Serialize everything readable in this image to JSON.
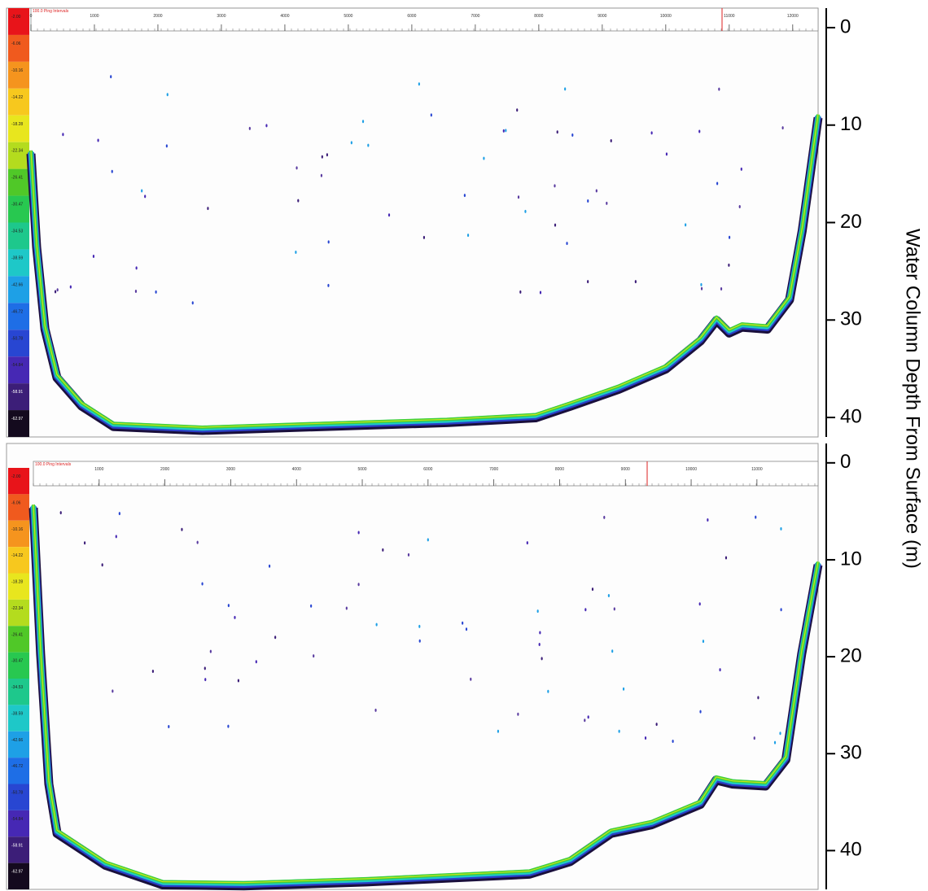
{
  "y_label": "Water Column Depth From Surface (m)",
  "color_scale": {
    "ticks": [
      {
        "value": -2.0,
        "label": "-2.00"
      },
      {
        "value": -6.06,
        "label": "-6.06"
      },
      {
        "value": -10.16,
        "label": "-10.16"
      },
      {
        "value": -14.22,
        "label": "-14.22"
      },
      {
        "value": -18.28,
        "label": "-18.28"
      },
      {
        "value": -22.34,
        "label": "-22.34"
      },
      {
        "value": -26.41,
        "label": "-26.41"
      },
      {
        "value": -30.47,
        "label": "-30.47"
      },
      {
        "value": -34.53,
        "label": "-34.53"
      },
      {
        "value": -38.59,
        "label": "-38.59"
      },
      {
        "value": -42.66,
        "label": "-42.66"
      },
      {
        "value": -46.72,
        "label": "-46.72"
      },
      {
        "value": -50.78,
        "label": "-50.78"
      },
      {
        "value": -54.84,
        "label": "-54.84"
      },
      {
        "value": -58.91,
        "label": "-58.91"
      },
      {
        "value": -62.97,
        "label": "-62.97"
      }
    ],
    "colors": [
      "#e8141a",
      "#f05a1e",
      "#f5941e",
      "#f7c81e",
      "#e8e61e",
      "#b4dc1e",
      "#50c828",
      "#28c850",
      "#1ec88c",
      "#1ec8c8",
      "#1ea0e6",
      "#1e6ee6",
      "#2846d2",
      "#4628b4",
      "#3c1e78",
      "#140a1e"
    ]
  },
  "chart_data": [
    {
      "type": "echogram",
      "x_label": "100.0 Ping Intervals",
      "xlim": [
        0,
        12400
      ],
      "xticks": [
        0,
        1000,
        2000,
        3000,
        4000,
        5000,
        6000,
        7000,
        8000,
        9000,
        10000,
        11000,
        12000
      ],
      "ylim": [
        -2,
        42
      ],
      "yticks": [
        0,
        10,
        20,
        30,
        40
      ],
      "x": [
        0,
        90,
        220,
        410,
        800,
        1300,
        2700,
        4600,
        6550,
        7950,
        8500,
        9250,
        10000,
        10550,
        10800,
        11000,
        11200,
        11600,
        11950,
        12150,
        12400
      ],
      "series": [
        {
          "color": "#3ccf3c",
          "values": [
            12.6,
            22.2,
            30.6,
            35.6,
            38.5,
            40.6,
            41,
            40.6,
            40.2,
            39.7,
            38.5,
            36.8,
            34.7,
            31.8,
            29.7,
            31,
            30.4,
            30.6,
            27.6,
            20.5,
            8.9
          ]
        }
      ]
    },
    {
      "type": "echogram",
      "x_label": "100.0 Ping Intervals",
      "xlim": [
        0,
        11930
      ],
      "xticks": [
        1000,
        2000,
        3000,
        4000,
        5000,
        6000,
        7000,
        8000,
        9000,
        10000,
        11000
      ],
      "ylim": [
        -2,
        44
      ],
      "yticks": [
        0,
        10,
        20,
        30,
        40
      ],
      "x": [
        0,
        110,
        235,
        360,
        1100,
        1970,
        3200,
        5060,
        7540,
        8160,
        8780,
        9400,
        10140,
        10380,
        10630,
        11130,
        11440,
        11680,
        11930
      ],
      "series": [
        {
          "color": "#3ccf3c",
          "values": [
            4.3,
            19.4,
            32.8,
            37.9,
            41.2,
            43.2,
            43.3,
            42.9,
            42.1,
            40.8,
            37.9,
            37,
            34.9,
            32.4,
            32.8,
            33,
            30.3,
            19.4,
            10.2
          ]
        }
      ]
    }
  ]
}
